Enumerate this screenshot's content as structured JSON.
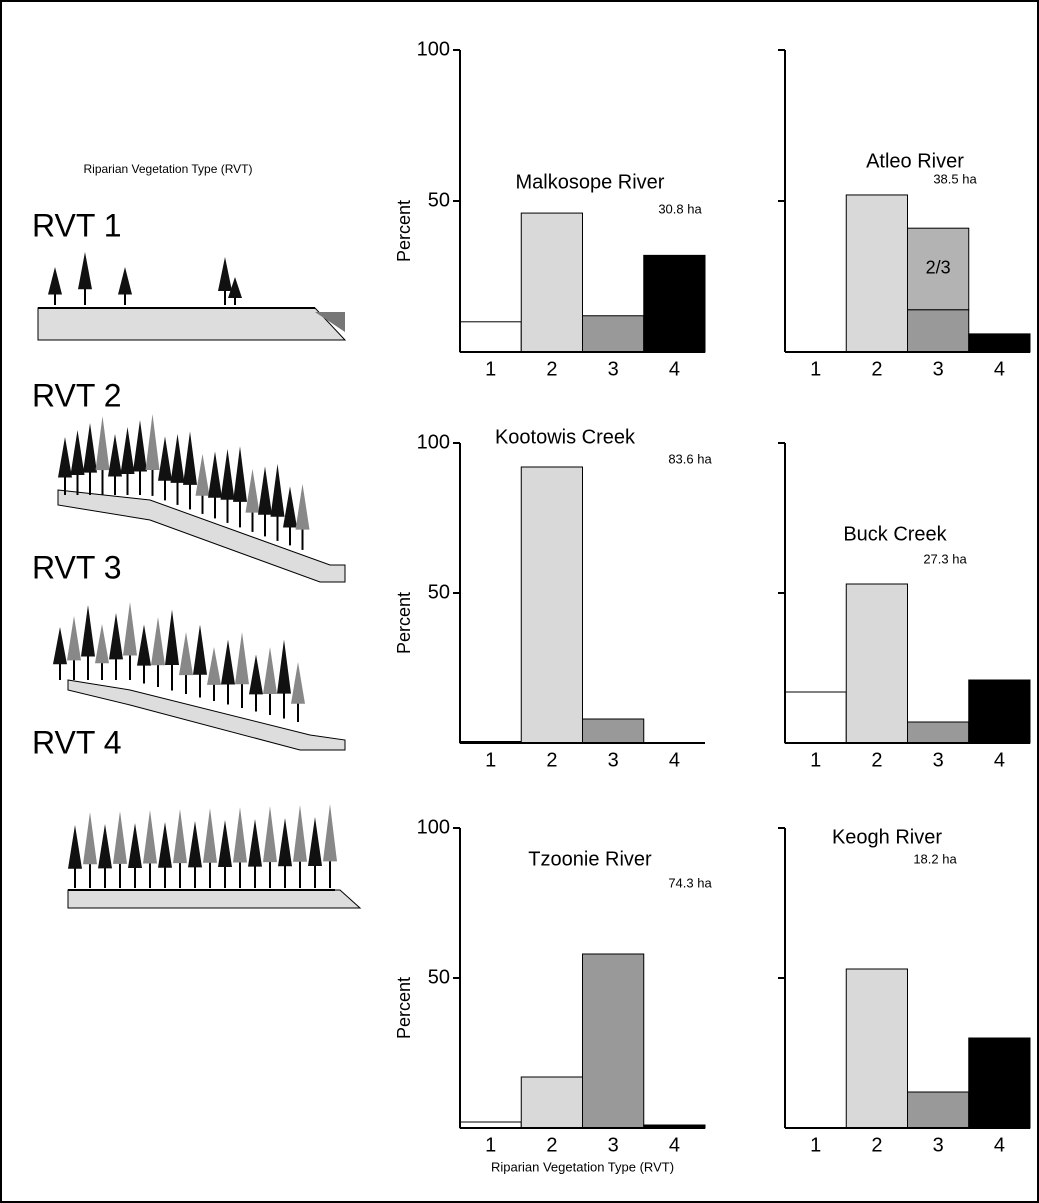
{
  "panel": {
    "title": "Riparian Vegetation Type (RVT)",
    "labels": [
      "RVT 1",
      "RVT 2",
      "RVT 3",
      "RVT 4"
    ]
  },
  "chart_data": [
    {
      "type": "bar",
      "title": "Malkosope River",
      "subtitle": "30.8 ha",
      "ylabel": "Percent",
      "categories": [
        "1",
        "2",
        "3",
        "4"
      ],
      "series": [
        {
          "colors": [
            "#ffffff",
            "#d9d9d9",
            "#999999",
            "#000000"
          ],
          "values": [
            10,
            46,
            12,
            32
          ]
        }
      ],
      "ylim": [
        0,
        100
      ],
      "yticks": [
        50,
        100
      ],
      "show_ytick_labels": true
    },
    {
      "type": "bar",
      "title": "Atleo River",
      "subtitle": "38.5 ha",
      "categories": [
        "1",
        "2",
        "3",
        "4"
      ],
      "series": [
        {
          "colors": [
            "#ffffff",
            "#d9d9d9",
            "#999999",
            "#000000"
          ],
          "values": [
            0,
            52,
            14,
            6
          ]
        },
        {
          "name": "2/3",
          "color": "#b3b3b3",
          "values": [
            null,
            null,
            27,
            null
          ]
        }
      ],
      "ylim": [
        0,
        100
      ],
      "yticks": [
        50,
        100
      ],
      "show_ytick_labels": false
    },
    {
      "type": "bar",
      "title": "Kootowis Creek",
      "subtitle": "83.6 ha",
      "ylabel": "Percent",
      "categories": [
        "1",
        "2",
        "3",
        "4"
      ],
      "series": [
        {
          "colors": [
            "#ffffff",
            "#d9d9d9",
            "#999999",
            "#000000"
          ],
          "values": [
            0.5,
            92,
            8,
            0
          ]
        }
      ],
      "ylim": [
        0,
        100
      ],
      "yticks": [
        50,
        100
      ],
      "show_ytick_labels": true
    },
    {
      "type": "bar",
      "title": "Buck Creek",
      "subtitle": "27.3 ha",
      "categories": [
        "1",
        "2",
        "3",
        "4"
      ],
      "series": [
        {
          "colors": [
            "#ffffff",
            "#d9d9d9",
            "#999999",
            "#000000"
          ],
          "values": [
            17,
            53,
            7,
            21
          ]
        }
      ],
      "ylim": [
        0,
        100
      ],
      "yticks": [
        50,
        100
      ],
      "show_ytick_labels": false
    },
    {
      "type": "bar",
      "title": "Tzoonie River",
      "subtitle": "74.3 ha",
      "ylabel": "Percent",
      "xlabel": "Riparian Vegetation Type (RVT)",
      "categories": [
        "1",
        "2",
        "3",
        "4"
      ],
      "series": [
        {
          "colors": [
            "#ffffff",
            "#d9d9d9",
            "#999999",
            "#000000"
          ],
          "values": [
            2,
            17,
            58,
            1
          ]
        }
      ],
      "ylim": [
        0,
        100
      ],
      "yticks": [
        50,
        100
      ],
      "show_ytick_labels": true
    },
    {
      "type": "bar",
      "title": "Keogh River",
      "subtitle": "18.2 ha",
      "categories": [
        "1",
        "2",
        "3",
        "4"
      ],
      "series": [
        {
          "colors": [
            "#ffffff",
            "#d9d9d9",
            "#999999",
            "#000000"
          ],
          "values": [
            0,
            53,
            12,
            30
          ]
        }
      ],
      "ylim": [
        0,
        100
      ],
      "yticks": [
        50,
        100
      ],
      "show_ytick_labels": false
    }
  ]
}
